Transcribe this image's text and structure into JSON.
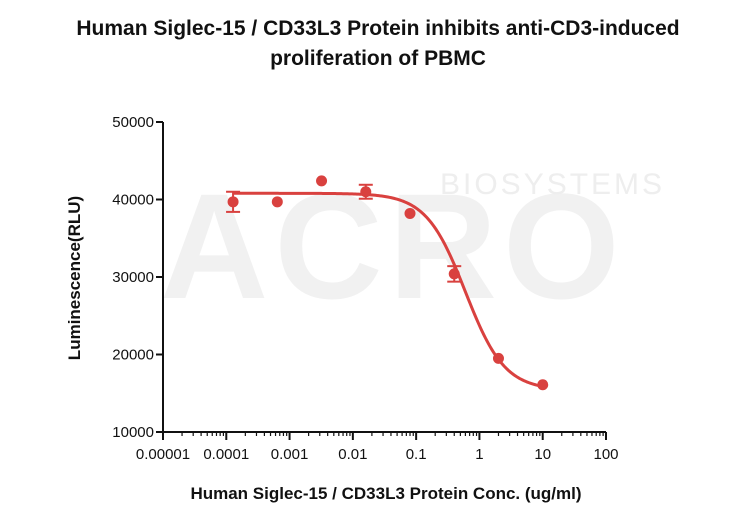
{
  "chart_data": {
    "type": "scatter",
    "title_line1": "Human Siglec-15 / CD33L3 Protein inhibits anti-CD3-induced",
    "title_line2": "proliferation of PBMC",
    "xlabel": "Human Siglec-15 / CD33L3 Protein Conc. (ug/ml)",
    "ylabel": "Luminescence(RLU)",
    "x_scale": "log",
    "xlim": [
      1e-05,
      100
    ],
    "ylim": [
      10000,
      50000
    ],
    "x_ticks": [
      {
        "value": 1e-05,
        "label": "0.00001"
      },
      {
        "value": 0.0001,
        "label": "0.0001"
      },
      {
        "value": 0.001,
        "label": "0.001"
      },
      {
        "value": 0.01,
        "label": "0.01"
      },
      {
        "value": 0.1,
        "label": "0.1"
      },
      {
        "value": 1,
        "label": "1"
      },
      {
        "value": 10,
        "label": "10"
      },
      {
        "value": 100,
        "label": "100"
      }
    ],
    "y_ticks": [
      {
        "value": 10000,
        "label": "10000"
      },
      {
        "value": 20000,
        "label": "20000"
      },
      {
        "value": 30000,
        "label": "30000"
      },
      {
        "value": 40000,
        "label": "40000"
      },
      {
        "value": 50000,
        "label": "50000"
      }
    ],
    "series": [
      {
        "color": "#d9413f",
        "points": [
          {
            "x": 0.000128,
            "y": 39700,
            "err": 1300
          },
          {
            "x": 0.00064,
            "y": 39700,
            "err": 0
          },
          {
            "x": 0.0032,
            "y": 42400,
            "err": 0
          },
          {
            "x": 0.016,
            "y": 41000,
            "err": 900
          },
          {
            "x": 0.08,
            "y": 38200,
            "err": 0
          },
          {
            "x": 0.4,
            "y": 30400,
            "err": 1000
          },
          {
            "x": 2,
            "y": 19500,
            "err": 0
          },
          {
            "x": 10,
            "y": 16100,
            "err": 0
          }
        ],
        "fit": {
          "model": "4PL",
          "top": 40800,
          "bottom": 15400,
          "ec50": 0.6,
          "hill": 1.4,
          "x_range": [
            0.000128,
            10
          ]
        }
      }
    ],
    "grid": false,
    "legend": "none"
  },
  "watermark": {
    "text": "ACRO",
    "subtext": "BIOSYSTEMS"
  }
}
